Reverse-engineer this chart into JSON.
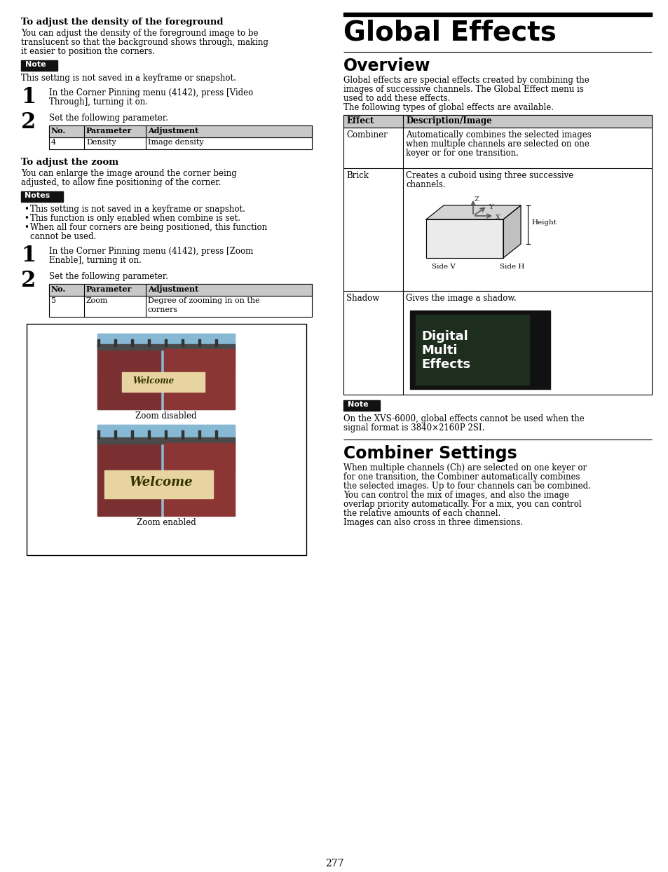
{
  "page_bg": "#ffffff",
  "page_number": "277",
  "left_col": {
    "section1_title": "To adjust the density of the foreground",
    "section1_body": "You can adjust the density of the foreground image to be\ntranslucent so that the background shows through, making\nit easier to position the corners.",
    "note1_label": "Note",
    "note1_body": "This setting is not saved in a keyframe or snapshot.",
    "step1_num": "1",
    "step1_text": "In the Corner Pinning menu (4142), press [Video\nThrough], turning it on.",
    "step2_num": "2",
    "step2_text": "Set the following parameter.",
    "table1_headers": [
      "No.",
      "Parameter",
      "Adjustment"
    ],
    "table1_rows": [
      [
        "4",
        "Density",
        "Image density"
      ]
    ],
    "section2_title": "To adjust the zoom",
    "section2_body": "You can enlarge the image around the corner being\nadjusted, to allow fine positioning of the corner.",
    "notes2_label": "Notes",
    "notes2_bullets": [
      "This setting is not saved in a keyframe or snapshot.",
      "This function is only enabled when combine is set.",
      "When all four corners are being positioned, this function\ncannot be used."
    ],
    "step3_num": "1",
    "step3_text": "In the Corner Pinning menu (4142), press [Zoom\nEnable], turning it on.",
    "step4_num": "2",
    "step4_text": "Set the following parameter.",
    "table2_headers": [
      "No.",
      "Parameter",
      "Adjustment"
    ],
    "table2_rows": [
      [
        "5",
        "Zoom",
        "Degree of zooming in on the\ncorners"
      ]
    ],
    "zoom_disabled_label": "Zoom disabled",
    "zoom_enabled_label": "Zoom enabled"
  },
  "right_col": {
    "main_title": "Global Effects",
    "section1_title": "Overview",
    "section1_body": "Global effects are special effects created by combining the\nimages of successive channels. The Global Effect menu is\nused to add these effects.\nThe following types of global effects are available.",
    "table_headers": [
      "Effect",
      "Description/Image"
    ],
    "table_rows": [
      [
        "Combiner",
        "Automatically combines the selected images\nwhen multiple channels are selected on one\nkeyer or for one transition."
      ],
      [
        "Brick",
        "Creates a cuboid using three successive\nchannels."
      ],
      [
        "Shadow",
        "Gives the image a shadow."
      ]
    ],
    "note_label": "Note",
    "note_body": "On the XVS-6000, global effects cannot be used when the\nsignal format is 3840×2160P 2SI.",
    "section2_title": "Combiner Settings",
    "section2_body": "When multiple channels (Ch) are selected on one keyer or\nfor one transition, the Combiner automatically combines\nthe selected images. Up to four channels can be combined.\nYou can control the mix of images, and also the image\noverlap priority automatically. For a mix, you can control\nthe relative amounts of each channel.\nImages can also cross in three dimensions."
  }
}
